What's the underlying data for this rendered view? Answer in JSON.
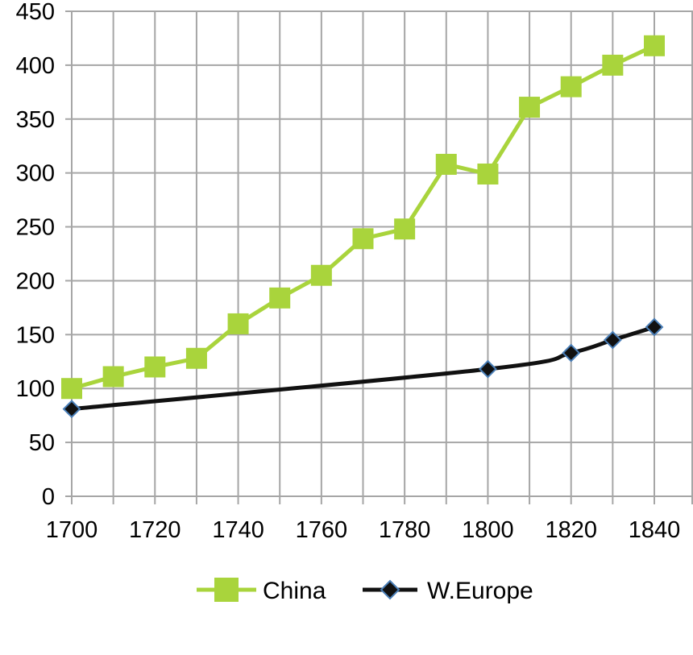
{
  "chart_data": {
    "type": "line",
    "title": "",
    "xlabel": "",
    "ylabel": "",
    "xlim": [
      1700,
      1840
    ],
    "ylim": [
      0,
      450
    ],
    "x_ticks": [
      1700,
      1720,
      1740,
      1760,
      1780,
      1800,
      1820,
      1840
    ],
    "x_tick_labels": [
      "1700",
      "1720",
      "1740",
      "1760",
      "1780",
      "1800",
      "1820",
      "1840"
    ],
    "y_ticks": [
      0,
      50,
      100,
      150,
      200,
      250,
      300,
      350,
      400,
      450
    ],
    "y_tick_labels": [
      "0",
      "50",
      "100",
      "150",
      "200",
      "250",
      "300",
      "350",
      "400",
      "450"
    ],
    "grid": true,
    "legend_position": "bottom",
    "series": [
      {
        "name": "China",
        "color": "#a9d43c",
        "marker": "square",
        "smooth": false,
        "x": [
          1700,
          1710,
          1720,
          1730,
          1740,
          1750,
          1760,
          1770,
          1780,
          1790,
          1800,
          1810,
          1820,
          1830,
          1840
        ],
        "y": [
          100,
          111,
          120,
          128,
          160,
          184,
          205,
          239,
          248,
          308,
          299,
          361,
          380,
          400,
          418
        ]
      },
      {
        "name": "W.Europe",
        "color": "#111111",
        "marker": "diamond",
        "marker_edge_color": "#4a7fb8",
        "smooth": true,
        "x": [
          1700,
          1800,
          1820,
          1830,
          1840
        ],
        "y": [
          81,
          118,
          133,
          145,
          157
        ]
      }
    ]
  }
}
